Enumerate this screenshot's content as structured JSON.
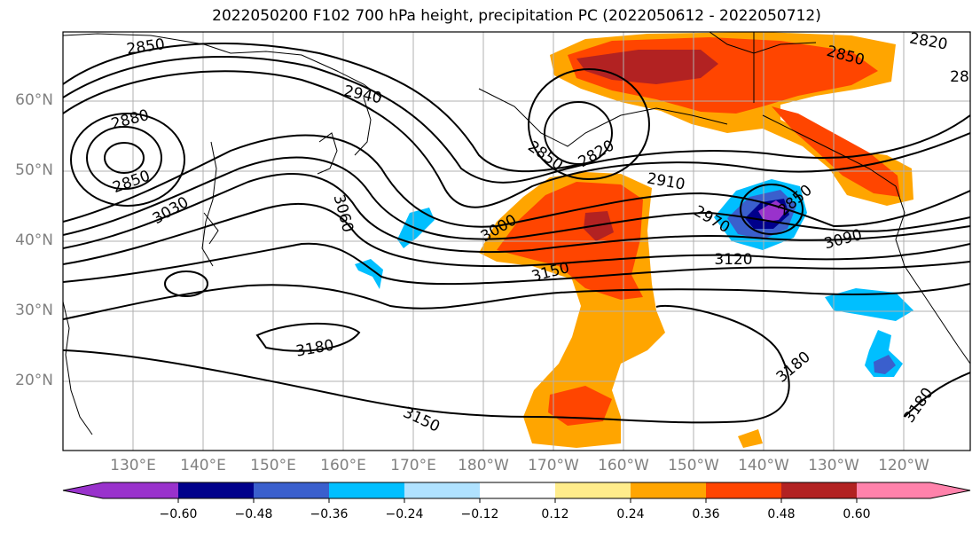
{
  "title": "2022050200 F102 700 hPa height, precipitation PC (2022050612 - 2022050712)",
  "map": {
    "lat_labels": [
      "60°N",
      "50°N",
      "40°N",
      "30°N",
      "20°N"
    ],
    "lon_labels": [
      "130°E",
      "140°E",
      "150°E",
      "160°E",
      "170°E",
      "180°W",
      "170°W",
      "160°W",
      "150°W",
      "140°W",
      "130°W",
      "120°W"
    ],
    "contour_labels": [
      "2850",
      "2940",
      "2880",
      "2850",
      "3030",
      "3060",
      "2850",
      "2820",
      "3000",
      "2910",
      "2970",
      "2850",
      "3090",
      "3120",
      "3150",
      "3180",
      "3150",
      "3180",
      "3180",
      "2820",
      "2850",
      "28"
    ]
  },
  "colorbar": {
    "tick_labels": [
      "−0.60",
      "−0.48",
      "−0.36",
      "−0.24",
      "−0.12",
      "0.12",
      "0.24",
      "0.36",
      "0.48",
      "0.60"
    ],
    "colors": [
      "#9932cc",
      "#00008b",
      "#3a5fcd",
      "#00bfff",
      "#b0e2ff",
      "#ffffff",
      "#ffec8b",
      "#ffa500",
      "#ff4500",
      "#b22222",
      "#ff82ab"
    ]
  }
}
